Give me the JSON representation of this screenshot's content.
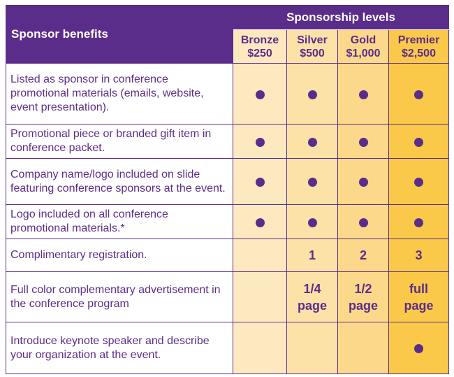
{
  "header": {
    "levels_title": "Sponsorship levels",
    "benefits_title": "Sponsor benefits"
  },
  "levels": [
    {
      "name": "Bronze",
      "price": "$250"
    },
    {
      "name": "Silver",
      "price": "$500"
    },
    {
      "name": "Gold",
      "price": "$1,000"
    },
    {
      "name": "Premier",
      "price": "$2,500"
    }
  ],
  "rows": [
    {
      "benefit": "Listed as sponsor in conference promotional materials (emails, website, event presentation).",
      "cells": [
        "dot",
        "dot",
        "dot",
        "dot"
      ]
    },
    {
      "benefit": "Promotional piece or branded gift item in conference packet.",
      "cells": [
        "dot",
        "dot",
        "dot",
        "dot"
      ]
    },
    {
      "benefit": "Company name/logo included on slide featuring conference sponsors at the event.",
      "cells": [
        "dot",
        "dot",
        "dot",
        "dot"
      ]
    },
    {
      "benefit": "Logo included on all conference promotional materials.*",
      "cells": [
        "dot",
        "dot",
        "dot",
        "dot"
      ]
    },
    {
      "benefit": "Complimentary registration.",
      "cells": [
        "",
        "1",
        "2",
        "3"
      ]
    },
    {
      "benefit": "Full color complementary advertisement in the conference program",
      "cells": [
        "",
        "1/4 page",
        "1/2 page",
        "full page"
      ]
    },
    {
      "benefit": "Introduce keynote speaker and describe your organization at the event.",
      "cells": [
        "",
        "",
        "",
        "dot"
      ]
    }
  ],
  "colors": {
    "purple": "#5b2d8a",
    "bronze": "#fde9c0",
    "silver": "#fde2a8",
    "gold": "#fcd88a",
    "premier": "#fbc94a"
  },
  "icons": {
    "included": "filled-circle-icon"
  }
}
